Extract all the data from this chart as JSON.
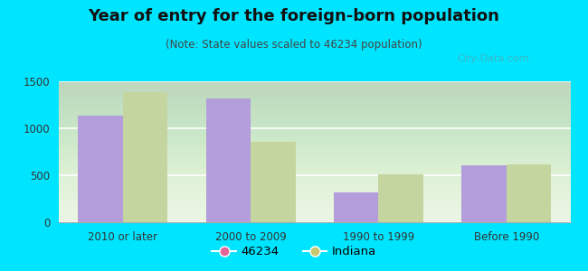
{
  "title": "Year of entry for the foreign-born population",
  "subtitle": "(Note: State values scaled to 46234 population)",
  "categories": [
    "2010 or later",
    "2000 to 2009",
    "1990 to 1999",
    "Before 1990"
  ],
  "values_46234": [
    1130,
    1320,
    320,
    610
  ],
  "values_indiana": [
    1380,
    860,
    510,
    615
  ],
  "bar_color_46234": "#b39ddb",
  "bar_color_indiana": "#c5d5a0",
  "background_outer": "#00e5ff",
  "background_inner": "#e8f5e0",
  "ylim": [
    0,
    1500
  ],
  "yticks": [
    0,
    500,
    1000,
    1500
  ],
  "legend_label_1": "46234",
  "legend_label_2": "Indiana",
  "legend_color_1": "#e0669a",
  "legend_color_2": "#c8c870",
  "title_fontsize": 13,
  "subtitle_fontsize": 8.5,
  "tick_fontsize": 8.5,
  "legend_fontsize": 9.5,
  "bar_width": 0.35
}
